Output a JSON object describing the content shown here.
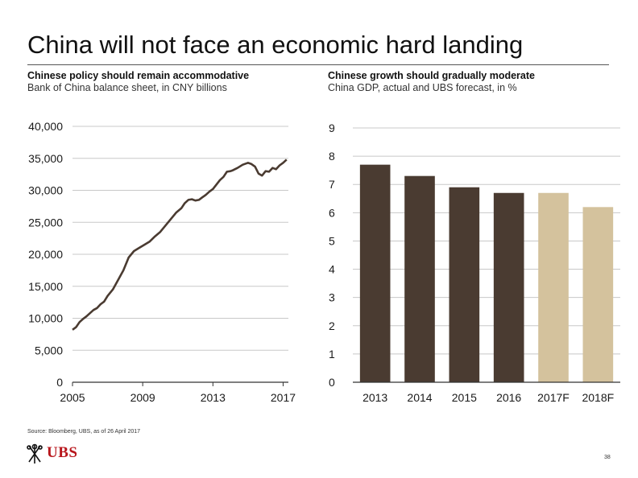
{
  "slide": {
    "title": "China will not face an economic hard landing",
    "source": "Source: Bloomberg, UBS, as of 26 April 2017",
    "brand": "UBS",
    "page_number": "38"
  },
  "left_panel": {
    "heading": "Chinese policy should remain accommodative",
    "subheading": "Bank of China balance sheet, in CNY billions"
  },
  "right_panel": {
    "heading": "Chinese growth should gradually moderate",
    "subheading": "China GDP, actual and UBS forecast, in %"
  },
  "colors": {
    "line": "#4a3b31",
    "actual_bar": "#4a3b31",
    "forecast_bar": "#d4c29d",
    "grid": "#c8c8c8",
    "axis": "#333333",
    "brand_red": "#b8161c"
  },
  "chart_data": [
    {
      "type": "line",
      "title": "",
      "xlabel": "",
      "ylabel": "",
      "x_ticks": [
        "2005",
        "2009",
        "2013",
        "2017"
      ],
      "y_ticks": [
        "40,000",
        "35,000",
        "30,000",
        "25,000",
        "20,000",
        "15,000",
        "10,000",
        "5,000",
        "0"
      ],
      "xlim": [
        2005,
        2017.3
      ],
      "ylim": [
        0,
        40000
      ],
      "grid": true,
      "series": [
        {
          "x": [
            2005.0,
            2005.2,
            2005.4,
            2005.6,
            2005.8,
            2006.0,
            2006.2,
            2006.4,
            2006.6,
            2006.8,
            2007.0,
            2007.3,
            2007.6,
            2007.9,
            2008.2,
            2008.5,
            2008.8,
            2009.1,
            2009.4,
            2009.7,
            2010.0,
            2010.3,
            2010.6,
            2010.9,
            2011.2,
            2011.4,
            2011.6,
            2011.8,
            2012.0,
            2012.2,
            2012.4,
            2012.6,
            2012.8,
            2013.0,
            2013.2,
            2013.4,
            2013.6,
            2013.8,
            2014.0,
            2014.1,
            2014.4,
            2014.7,
            2015.0,
            2015.2,
            2015.4,
            2015.6,
            2015.8,
            2016.0,
            2016.2,
            2016.4,
            2016.6,
            2016.8,
            2017.0,
            2017.2
          ],
          "y": [
            8200,
            8600,
            9400,
            9900,
            10300,
            10800,
            11300,
            11600,
            12200,
            12600,
            13500,
            14500,
            16000,
            17500,
            19500,
            20500,
            21000,
            21500,
            22000,
            22800,
            23500,
            24500,
            25500,
            26500,
            27200,
            28000,
            28500,
            28600,
            28400,
            28500,
            28900,
            29300,
            29800,
            30200,
            30900,
            31600,
            32100,
            32900,
            33000,
            33100,
            33500,
            34000,
            34300,
            34100,
            33700,
            32600,
            32300,
            33000,
            32900,
            33500,
            33300,
            33900,
            34300,
            34800
          ]
        }
      ]
    },
    {
      "type": "bar",
      "title": "",
      "xlabel": "",
      "ylabel": "",
      "categories": [
        "2013",
        "2014",
        "2015",
        "2016",
        "2017F",
        "2018F"
      ],
      "values": [
        7.7,
        7.3,
        6.9,
        6.7,
        6.7,
        6.2
      ],
      "forecast": [
        false,
        false,
        false,
        false,
        true,
        true
      ],
      "y_ticks": [
        "9",
        "8",
        "7",
        "6",
        "5",
        "4",
        "3",
        "2",
        "1",
        "0"
      ],
      "ylim": [
        0,
        9
      ],
      "grid": true
    }
  ]
}
